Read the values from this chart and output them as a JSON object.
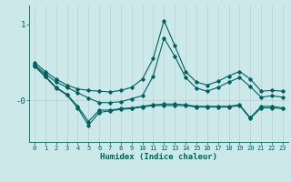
{
  "xlabel": "Humidex (Indice chaleur)",
  "x": [
    0,
    1,
    2,
    3,
    4,
    5,
    6,
    7,
    8,
    9,
    10,
    11,
    12,
    13,
    14,
    15,
    16,
    17,
    18,
    19,
    20,
    21,
    22,
    23
  ],
  "line1": [
    0.5,
    0.38,
    0.28,
    0.2,
    0.15,
    0.13,
    0.12,
    0.11,
    0.13,
    0.17,
    0.28,
    0.55,
    1.05,
    0.72,
    0.38,
    0.24,
    0.2,
    0.25,
    0.32,
    0.38,
    0.28,
    0.12,
    0.13,
    0.12
  ],
  "line2": [
    0.47,
    0.35,
    0.24,
    0.17,
    0.1,
    0.03,
    -0.03,
    -0.03,
    -0.02,
    0.02,
    0.06,
    0.32,
    0.82,
    0.58,
    0.3,
    0.16,
    0.12,
    0.17,
    0.24,
    0.3,
    0.18,
    0.04,
    0.06,
    0.04
  ],
  "line3": [
    0.46,
    0.32,
    0.17,
    0.08,
    -0.08,
    -0.28,
    -0.13,
    -0.13,
    -0.11,
    -0.1,
    -0.08,
    -0.06,
    -0.05,
    -0.05,
    -0.06,
    -0.08,
    -0.08,
    -0.08,
    -0.08,
    -0.06,
    -0.23,
    -0.08,
    -0.08,
    -0.1
  ],
  "line4": [
    0.45,
    0.31,
    0.16,
    0.07,
    -0.1,
    -0.33,
    -0.16,
    -0.14,
    -0.12,
    -0.11,
    -0.09,
    -0.07,
    -0.07,
    -0.07,
    -0.07,
    -0.09,
    -0.09,
    -0.09,
    -0.09,
    -0.07,
    -0.24,
    -0.1,
    -0.1,
    -0.11
  ],
  "bg_color": "#cce8e8",
  "line_color": "#006060",
  "grid_color": "#aacccc",
  "ylim": [
    -0.55,
    1.25
  ],
  "xlim": [
    -0.5,
    23.5
  ],
  "ytick_vals": [
    0,
    1
  ],
  "ytick_labels": [
    "-0",
    "1"
  ],
  "marker": "D",
  "markersize": 1.8,
  "linewidth": 0.8
}
